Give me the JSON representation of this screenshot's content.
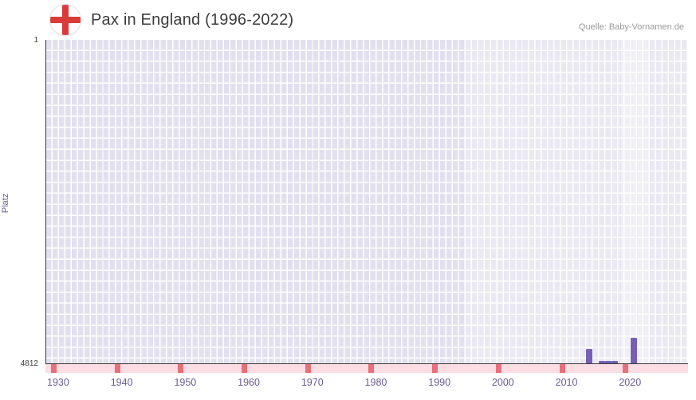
{
  "header": {
    "title": "Pax in England (1996-2022)",
    "source": "Quelle: Baby-Vornamen.de"
  },
  "chart_data": {
    "type": "bar",
    "title": "Pax in England (1996-2022)",
    "xlabel": "",
    "ylabel": "Platz",
    "legend_position": "none",
    "grid": true,
    "y_axis": {
      "ticks": [
        "1",
        "4812"
      ],
      "min": 1,
      "max": 4812,
      "inverted": true
    },
    "x_axis": {
      "min": 1928,
      "max": 2029,
      "tick_years": [
        1930,
        1940,
        1950,
        1960,
        1970,
        1980,
        1990,
        2000,
        2010,
        2020
      ]
    },
    "bar_width_years": 1,
    "series": [
      {
        "name": "Platz",
        "points": [
          {
            "year": 2013,
            "rank": 4600
          },
          {
            "year": 2015,
            "rank": 4780
          },
          {
            "year": 2016,
            "rank": 4775
          },
          {
            "year": 2017,
            "rank": 4780
          },
          {
            "year": 2020,
            "rank": 4430
          }
        ]
      }
    ],
    "data_period": {
      "from": 1994,
      "to": 2029
    },
    "highlight_column": {
      "from": 2018.5,
      "to": 2022.8
    },
    "colors": {
      "bar": "#7560b4",
      "plot_background": "#e2e0ee",
      "grid_line": "#ffffff",
      "axis_line": "#3a3a3a",
      "tick_strip_background": "#fbdee3",
      "tick_mark": "#e8707a",
      "x_label": "#6b5b95",
      "y_label": "#6b5b95",
      "flag_cross": "#d93a3a"
    }
  }
}
